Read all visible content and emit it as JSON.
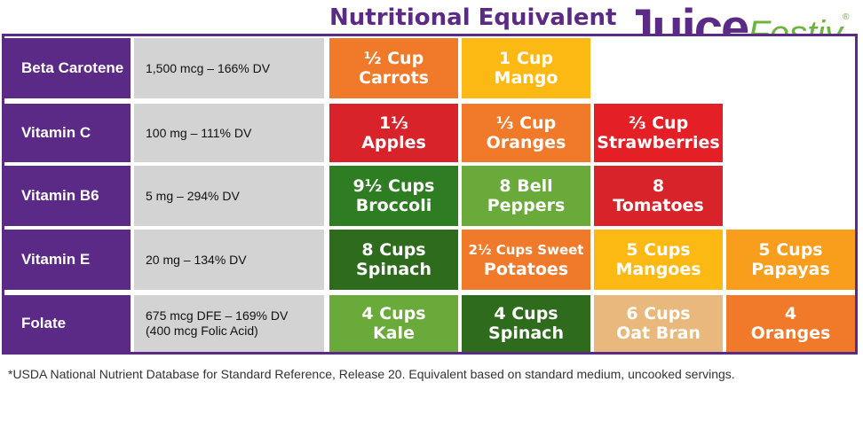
{
  "header": {
    "title": "Nutritional Equivalent",
    "logo_main": "Juice",
    "logo_accent": "Festiv",
    "logo_mark": "®"
  },
  "colors": {
    "purple": "#5b2a86",
    "gray": "#d3d3d3",
    "orange": "#f07a2a",
    "yellow": "#fdb913",
    "red": "#d8232a",
    "light_green": "#6aaa3a",
    "dark_green": "#2e6b1c",
    "tan": "#e8b87c"
  },
  "rows": [
    {
      "nutrient": "Beta Carotene",
      "amount": "1,500 mcg – 166% DV",
      "equivalents": [
        {
          "quantity": "½ Cup",
          "food": "Carrots",
          "color": "#f07a2a"
        },
        {
          "quantity": "1 Cup",
          "food": "Mango",
          "color": "#fdb913"
        }
      ]
    },
    {
      "nutrient": "Vitamin C",
      "amount": "100 mg – 111% DV",
      "equivalents": [
        {
          "quantity": "1⅓",
          "food": "Apples",
          "color": "#d8232a"
        },
        {
          "quantity": "⅓ Cup",
          "food": "Oranges",
          "color": "#f07a2a"
        },
        {
          "quantity": "⅔ Cup",
          "food": "Strawberries",
          "color": "#e41f26"
        }
      ]
    },
    {
      "nutrient": "Vitamin B6",
      "amount": "5 mg – 294% DV",
      "equivalents": [
        {
          "quantity": "9½ Cups",
          "food": "Broccoli",
          "color": "#2f7d22"
        },
        {
          "quantity": "8 Bell",
          "food": "Peppers",
          "color": "#6aaa3a"
        },
        {
          "quantity": "8",
          "food": "Tomatoes",
          "color": "#d8232a"
        }
      ]
    },
    {
      "nutrient": "Vitamin E",
      "amount": "20 mg – 134% DV",
      "equivalents": [
        {
          "quantity": "8 Cups",
          "food": "Spinach",
          "color": "#2e6b1c"
        },
        {
          "quantity": "2½ Cups Sweet",
          "food": "Potatoes",
          "color": "#f07a2a"
        },
        {
          "quantity": "5 Cups",
          "food": "Mangoes",
          "color": "#fdb913"
        },
        {
          "quantity": "5 Cups",
          "food": "Papayas",
          "color": "#f99d1c"
        }
      ]
    },
    {
      "nutrient": "Folate",
      "amount": "675 mcg DFE  – 169% DV\n(400 mcg Folic Acid)",
      "equivalents": [
        {
          "quantity": "4 Cups",
          "food": "Kale",
          "color": "#6aaa3a"
        },
        {
          "quantity": "4 Cups",
          "food": "Spinach",
          "color": "#2e6b1c"
        },
        {
          "quantity": "6 Cups",
          "food": "Oat Bran",
          "color": "#e8b87c"
        },
        {
          "quantity": "4",
          "food": "Oranges",
          "color": "#f07a2a"
        }
      ]
    }
  ],
  "footnote": "*USDA National Nutrient Database for Standard Reference, Release 20. Equivalent based on standard medium, uncooked servings."
}
